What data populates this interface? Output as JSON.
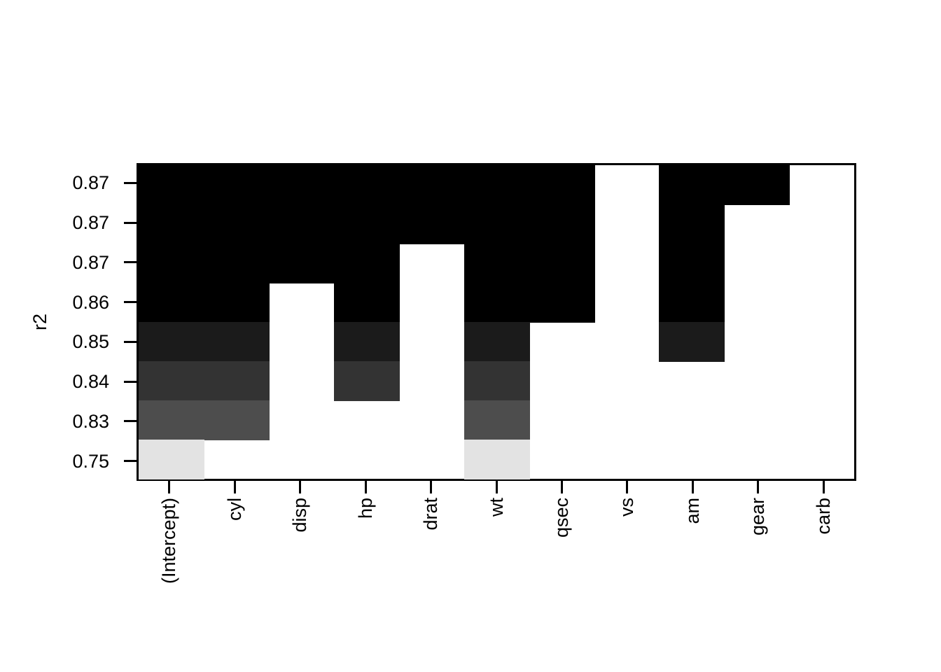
{
  "figure": {
    "background_color": "#ffffff",
    "axis_color": "#000000"
  },
  "chart_data": {
    "type": "heatmap",
    "title": "",
    "xlabel": "",
    "ylabel": "r2",
    "grid": false,
    "legend": null,
    "x_tick_labels": [
      "(Intercept)",
      "cyl",
      "disp",
      "hp",
      "drat",
      "wt",
      "qsec",
      "vs",
      "am",
      "gear",
      "carb"
    ],
    "y_tick_labels": [
      "0.87",
      "0.87",
      "0.87",
      "0.86",
      "0.85",
      "0.84",
      "0.83",
      "0.75"
    ],
    "rows": [
      {
        "r2_label": "0.87",
        "fill_color": "#000000",
        "included": [
          1,
          1,
          1,
          1,
          1,
          1,
          1,
          0,
          1,
          1,
          0
        ]
      },
      {
        "r2_label": "0.87",
        "fill_color": "#000000",
        "included": [
          1,
          1,
          1,
          1,
          1,
          1,
          1,
          0,
          1,
          0,
          0
        ]
      },
      {
        "r2_label": "0.87",
        "fill_color": "#000000",
        "included": [
          1,
          1,
          1,
          1,
          0,
          1,
          1,
          0,
          1,
          0,
          0
        ]
      },
      {
        "r2_label": "0.86",
        "fill_color": "#000000",
        "included": [
          1,
          1,
          0,
          1,
          0,
          1,
          1,
          0,
          1,
          0,
          0
        ]
      },
      {
        "r2_label": "0.85",
        "fill_color": "#1b1b1b",
        "included": [
          1,
          1,
          0,
          1,
          0,
          1,
          0,
          0,
          1,
          0,
          0
        ]
      },
      {
        "r2_label": "0.84",
        "fill_color": "#333333",
        "included": [
          1,
          1,
          0,
          1,
          0,
          1,
          0,
          0,
          0,
          0,
          0
        ]
      },
      {
        "r2_label": "0.83",
        "fill_color": "#4d4d4d",
        "included": [
          1,
          1,
          0,
          0,
          0,
          1,
          0,
          0,
          0,
          0,
          0
        ]
      },
      {
        "r2_label": "0.75",
        "fill_color": "#e3e3e3",
        "included": [
          1,
          0,
          0,
          0,
          0,
          1,
          0,
          0,
          0,
          0,
          0
        ]
      }
    ]
  }
}
